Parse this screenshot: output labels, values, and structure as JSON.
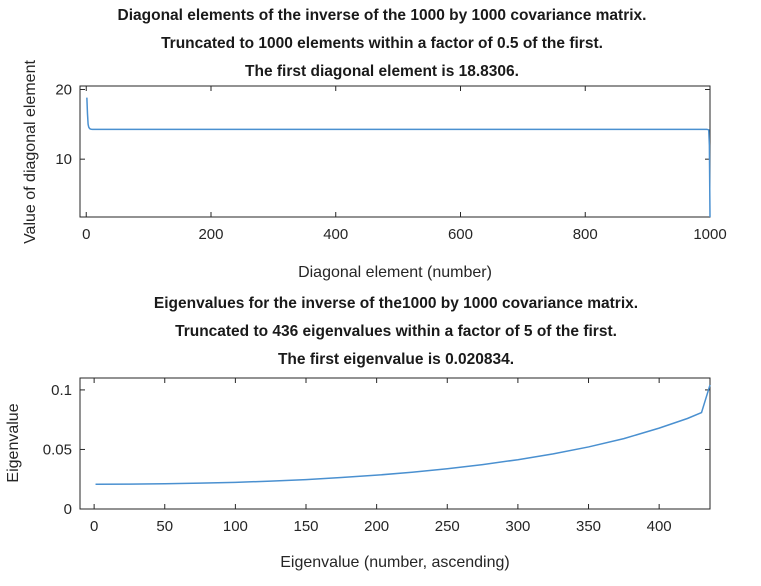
{
  "chart_data": [
    {
      "type": "line",
      "title_lines": [
        "Diagonal elements of the inverse of the 1000 by 1000 covariance matrix.",
        "Truncated to 1000 elements within a factor of 0.5 of the first.",
        "The first diagonal element is 18.8306."
      ],
      "xlabel": "Diagonal element (number)",
      "ylabel": "Value of diagonal element",
      "xlim": [
        -10,
        1000
      ],
      "ylim": [
        1.7,
        20.5
      ],
      "xticks": [
        0,
        200,
        400,
        600,
        800,
        1000
      ],
      "yticks": [
        10,
        20
      ],
      "grid": false,
      "series_color": "#4a90d0",
      "x": [
        1,
        2,
        3,
        4,
        5,
        6,
        8,
        10,
        100,
        200,
        300,
        400,
        500,
        600,
        700,
        800,
        900,
        995,
        998,
        999,
        1000
      ],
      "y": [
        18.83,
        16.5,
        15.0,
        14.6,
        14.45,
        14.35,
        14.3,
        14.28,
        14.28,
        14.28,
        14.28,
        14.28,
        14.28,
        14.28,
        14.28,
        14.28,
        14.28,
        14.28,
        14.2,
        12.0,
        1.7
      ]
    },
    {
      "type": "line",
      "title_lines": [
        "Eigenvalues for the inverse of the1000 by 1000 covariance matrix.",
        "Truncated to 436 eigenvalues within a factor of 5 of the first.",
        "The first eigenvalue is 0.020834."
      ],
      "xlabel": "Eigenvalue (number, ascending)",
      "ylabel": "Eigenvalue",
      "xlim": [
        -10,
        436
      ],
      "ylim": [
        0,
        0.11
      ],
      "xticks": [
        0,
        50,
        100,
        150,
        200,
        250,
        300,
        350,
        400
      ],
      "yticks": [
        0,
        0.05,
        0.1
      ],
      "ytick_labels": [
        "0",
        "0.05",
        "0.1"
      ],
      "grid": false,
      "series_color": "#4a90d0",
      "x": [
        1,
        25,
        50,
        75,
        100,
        125,
        150,
        175,
        200,
        225,
        250,
        275,
        300,
        325,
        350,
        375,
        400,
        420,
        430,
        436
      ],
      "y": [
        0.0208,
        0.0209,
        0.0212,
        0.0217,
        0.0224,
        0.0234,
        0.0247,
        0.0264,
        0.0284,
        0.0309,
        0.0338,
        0.0373,
        0.0414,
        0.0463,
        0.0521,
        0.0591,
        0.0679,
        0.076,
        0.081,
        0.1042
      ]
    }
  ]
}
